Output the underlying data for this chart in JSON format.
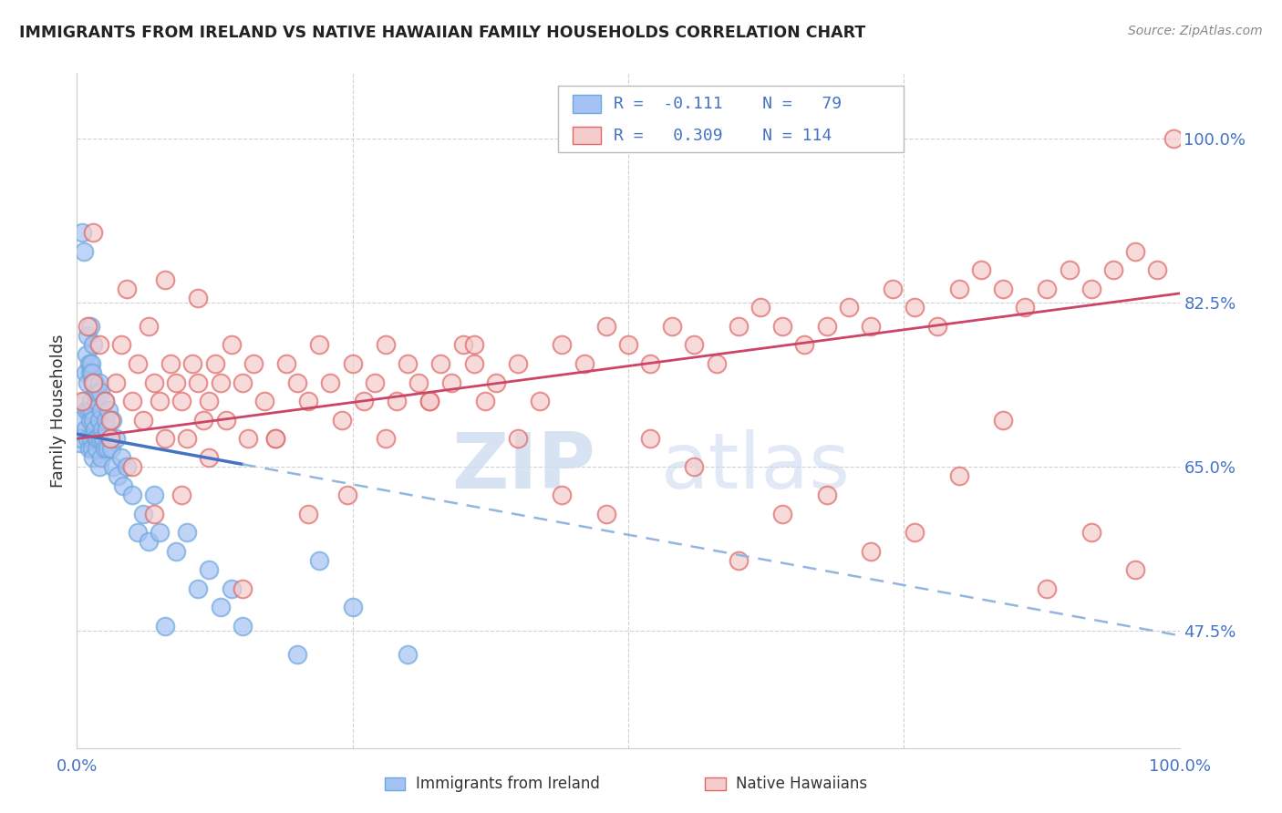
{
  "title": "IMMIGRANTS FROM IRELAND VS NATIVE HAWAIIAN FAMILY HOUSEHOLDS CORRELATION CHART",
  "source": "Source: ZipAtlas.com",
  "ylabel": "Family Households",
  "yticks": [
    47.5,
    65.0,
    82.5,
    100.0
  ],
  "ytick_labels": [
    "47.5%",
    "65.0%",
    "82.5%",
    "100.0%"
  ],
  "blue_fill": "#a4c2f4",
  "blue_edge": "#6fa8dc",
  "pink_fill": "#f4cccc",
  "pink_edge": "#e06666",
  "line_blue_solid": "#4472c4",
  "line_blue_dash": "#93b5e0",
  "line_pink": "#cc4466",
  "background": "#ffffff",
  "grid_color": "#cccccc",
  "title_color": "#222222",
  "axis_color": "#4472c4",
  "xmin": 0.0,
  "xmax": 100.0,
  "ymin": 35.0,
  "ymax": 107.0,
  "blue_line_x0": 0.0,
  "blue_line_x1": 100.0,
  "blue_line_y0": 68.5,
  "blue_line_y1": 47.0,
  "blue_solid_end_x": 15.0,
  "pink_line_x0": 0.0,
  "pink_line_x1": 100.0,
  "pink_line_y0": 68.0,
  "pink_line_y1": 83.5,
  "blue_scatter_x": [
    0.2,
    0.3,
    0.4,
    0.5,
    0.6,
    0.7,
    0.8,
    0.8,
    0.9,
    0.9,
    1.0,
    1.0,
    1.0,
    1.1,
    1.1,
    1.1,
    1.2,
    1.2,
    1.2,
    1.3,
    1.3,
    1.3,
    1.4,
    1.4,
    1.4,
    1.5,
    1.5,
    1.5,
    1.5,
    1.6,
    1.6,
    1.7,
    1.7,
    1.8,
    1.8,
    1.9,
    1.9,
    2.0,
    2.0,
    2.0,
    2.1,
    2.1,
    2.2,
    2.2,
    2.3,
    2.4,
    2.5,
    2.5,
    2.6,
    2.7,
    2.8,
    2.9,
    3.0,
    3.1,
    3.2,
    3.3,
    3.5,
    3.7,
    4.0,
    4.2,
    4.5,
    5.0,
    5.5,
    6.0,
    6.5,
    7.0,
    7.5,
    8.0,
    9.0,
    10.0,
    11.0,
    12.0,
    13.0,
    14.0,
    15.0,
    20.0,
    22.0,
    25.0,
    30.0
  ],
  "blue_scatter_y": [
    67.5,
    70.0,
    68.0,
    90.0,
    88.0,
    72.0,
    75.0,
    69.0,
    77.0,
    71.0,
    79.0,
    74.0,
    68.0,
    76.0,
    71.0,
    67.0,
    80.0,
    75.0,
    70.0,
    76.0,
    72.0,
    68.0,
    75.0,
    71.0,
    67.0,
    78.0,
    74.0,
    70.0,
    66.0,
    74.0,
    69.0,
    73.0,
    68.0,
    72.0,
    67.0,
    73.0,
    68.0,
    74.0,
    70.0,
    65.0,
    73.0,
    68.0,
    71.0,
    66.0,
    69.0,
    68.0,
    72.0,
    67.0,
    70.0,
    69.0,
    67.0,
    71.0,
    68.0,
    67.0,
    70.0,
    65.0,
    68.0,
    64.0,
    66.0,
    63.0,
    65.0,
    62.0,
    58.0,
    60.0,
    57.0,
    62.0,
    58.0,
    48.0,
    56.0,
    58.0,
    52.0,
    54.0,
    50.0,
    52.0,
    48.0,
    45.0,
    55.0,
    50.0,
    45.0
  ],
  "pink_scatter_x": [
    0.5,
    1.0,
    1.5,
    2.0,
    2.5,
    3.0,
    3.5,
    4.0,
    5.0,
    5.5,
    6.0,
    6.5,
    7.0,
    7.5,
    8.0,
    8.5,
    9.0,
    9.5,
    10.0,
    10.5,
    11.0,
    11.5,
    12.0,
    12.5,
    13.0,
    13.5,
    14.0,
    15.0,
    15.5,
    16.0,
    17.0,
    18.0,
    19.0,
    20.0,
    21.0,
    22.0,
    23.0,
    24.0,
    25.0,
    26.0,
    27.0,
    28.0,
    29.0,
    30.0,
    31.0,
    32.0,
    33.0,
    34.0,
    35.0,
    36.0,
    37.0,
    38.0,
    40.0,
    42.0,
    44.0,
    46.0,
    48.0,
    50.0,
    52.0,
    54.0,
    56.0,
    58.0,
    60.0,
    62.0,
    64.0,
    66.0,
    68.0,
    70.0,
    72.0,
    74.0,
    76.0,
    78.0,
    80.0,
    82.0,
    84.0,
    86.0,
    88.0,
    90.0,
    92.0,
    94.0,
    96.0,
    98.0,
    99.5,
    3.0,
    5.0,
    7.0,
    9.5,
    12.0,
    15.0,
    18.0,
    21.0,
    24.5,
    28.0,
    32.0,
    36.0,
    40.0,
    44.0,
    48.0,
    52.0,
    56.0,
    60.0,
    64.0,
    68.0,
    72.0,
    76.0,
    80.0,
    84.0,
    88.0,
    92.0,
    96.0,
    1.5,
    4.5,
    8.0,
    11.0
  ],
  "pink_scatter_y": [
    72.0,
    80.0,
    74.0,
    78.0,
    72.0,
    70.0,
    74.0,
    78.0,
    72.0,
    76.0,
    70.0,
    80.0,
    74.0,
    72.0,
    68.0,
    76.0,
    74.0,
    72.0,
    68.0,
    76.0,
    74.0,
    70.0,
    72.0,
    76.0,
    74.0,
    70.0,
    78.0,
    74.0,
    68.0,
    76.0,
    72.0,
    68.0,
    76.0,
    74.0,
    72.0,
    78.0,
    74.0,
    70.0,
    76.0,
    72.0,
    74.0,
    78.0,
    72.0,
    76.0,
    74.0,
    72.0,
    76.0,
    74.0,
    78.0,
    76.0,
    72.0,
    74.0,
    76.0,
    72.0,
    78.0,
    76.0,
    80.0,
    78.0,
    76.0,
    80.0,
    78.0,
    76.0,
    80.0,
    82.0,
    80.0,
    78.0,
    80.0,
    82.0,
    80.0,
    84.0,
    82.0,
    80.0,
    84.0,
    86.0,
    84.0,
    82.0,
    84.0,
    86.0,
    84.0,
    86.0,
    88.0,
    86.0,
    100.0,
    68.0,
    65.0,
    60.0,
    62.0,
    66.0,
    52.0,
    68.0,
    60.0,
    62.0,
    68.0,
    72.0,
    78.0,
    68.0,
    62.0,
    60.0,
    68.0,
    65.0,
    55.0,
    60.0,
    62.0,
    56.0,
    58.0,
    64.0,
    70.0,
    52.0,
    58.0,
    54.0,
    90.0,
    84.0,
    85.0,
    83.0
  ]
}
